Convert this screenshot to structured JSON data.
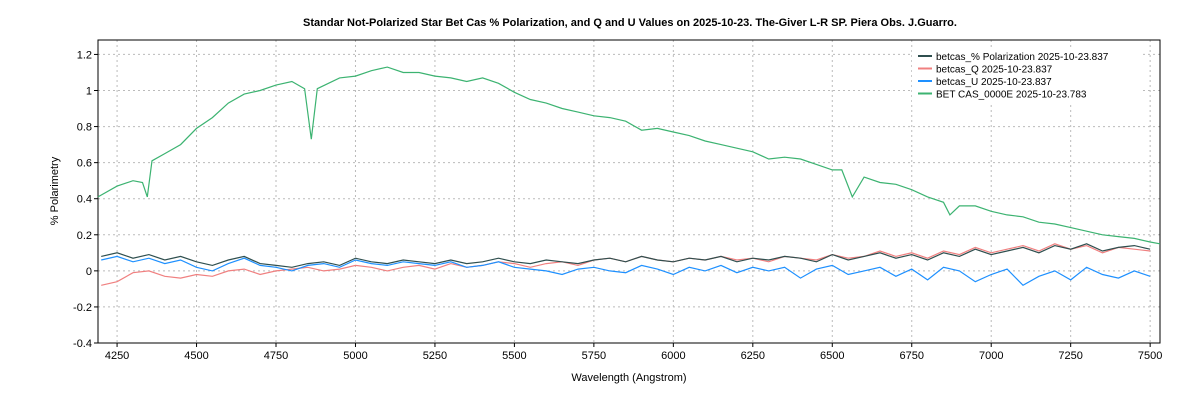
{
  "chart_data": {
    "type": "line",
    "title": "Standar Not-Polarized Star Bet Cas % Polarization, and Q and U Values on 2025-10-23. The-Giver L-R SP. Piera Obs.  J.Guarro.",
    "xlabel": "Wavelength (Angstrom)",
    "ylabel": "% Polarimetry",
    "xlim": [
      4190,
      7531
    ],
    "ylim": [
      -0.4,
      1.28
    ],
    "xticks": [
      4250,
      4500,
      4750,
      5000,
      5250,
      5500,
      5750,
      6000,
      6250,
      6500,
      6750,
      7000,
      7250,
      7500
    ],
    "yticks": [
      -0.4,
      -0.2,
      0,
      0.2,
      0.4,
      0.6,
      0.8,
      1,
      1.2
    ],
    "ytick_labels": [
      "-0.4",
      "-0.2",
      "0",
      "0.2",
      "0.4",
      "0.6",
      "0.8",
      "1",
      "1.2"
    ],
    "grid": true,
    "legend_placement": "top-right",
    "x": [
      4200,
      4250,
      4300,
      4350,
      4400,
      4450,
      4500,
      4550,
      4600,
      4650,
      4700,
      4750,
      4800,
      4850,
      4900,
      4950,
      5000,
      5050,
      5100,
      5150,
      5200,
      5250,
      5300,
      5350,
      5400,
      5450,
      5500,
      5550,
      5600,
      5650,
      5700,
      5750,
      5800,
      5850,
      5900,
      5950,
      6000,
      6050,
      6100,
      6150,
      6200,
      6250,
      6300,
      6350,
      6400,
      6450,
      6500,
      6550,
      6600,
      6650,
      6700,
      6750,
      6800,
      6850,
      6900,
      6950,
      7000,
      7050,
      7100,
      7150,
      7200,
      7250,
      7300,
      7350,
      7400,
      7450,
      7500
    ],
    "series": [
      {
        "name": "betcas_% Polarization  2025-10-23.837",
        "color": "#2f4f4f",
        "values": [
          0.08,
          0.1,
          0.07,
          0.09,
          0.06,
          0.08,
          0.05,
          0.03,
          0.06,
          0.08,
          0.04,
          0.03,
          0.02,
          0.04,
          0.05,
          0.03,
          0.07,
          0.05,
          0.04,
          0.06,
          0.05,
          0.04,
          0.06,
          0.04,
          0.05,
          0.07,
          0.05,
          0.04,
          0.06,
          0.05,
          0.04,
          0.06,
          0.07,
          0.05,
          0.08,
          0.06,
          0.05,
          0.07,
          0.06,
          0.08,
          0.05,
          0.07,
          0.06,
          0.08,
          0.07,
          0.05,
          0.09,
          0.06,
          0.08,
          0.1,
          0.07,
          0.09,
          0.06,
          0.1,
          0.08,
          0.12,
          0.09,
          0.11,
          0.13,
          0.1,
          0.14,
          0.12,
          0.15,
          0.11,
          0.13,
          0.14,
          0.12
        ]
      },
      {
        "name": "betcas_Q  2025-10-23.837",
        "color": "#f08080",
        "values": [
          -0.08,
          -0.06,
          -0.01,
          0.0,
          -0.03,
          -0.04,
          -0.02,
          -0.03,
          0.0,
          0.01,
          -0.02,
          0.0,
          0.01,
          0.02,
          0.0,
          0.01,
          0.03,
          0.02,
          0.0,
          0.02,
          0.03,
          0.01,
          0.04,
          0.02,
          0.03,
          0.05,
          0.04,
          0.02,
          0.04,
          0.05,
          0.03,
          0.06,
          0.07,
          0.05,
          0.08,
          0.06,
          0.05,
          0.07,
          0.06,
          0.08,
          0.06,
          0.07,
          0.05,
          0.08,
          0.07,
          0.06,
          0.09,
          0.07,
          0.08,
          0.11,
          0.08,
          0.1,
          0.07,
          0.11,
          0.09,
          0.13,
          0.1,
          0.12,
          0.14,
          0.11,
          0.15,
          0.12,
          0.14,
          0.1,
          0.13,
          0.12,
          0.11
        ]
      },
      {
        "name": "betcas_U  2025-10-23.837",
        "color": "#1e90ff",
        "values": [
          0.06,
          0.08,
          0.05,
          0.07,
          0.04,
          0.06,
          0.02,
          0.0,
          0.04,
          0.07,
          0.03,
          0.02,
          0.0,
          0.03,
          0.04,
          0.02,
          0.06,
          0.04,
          0.03,
          0.05,
          0.04,
          0.03,
          0.05,
          0.02,
          0.03,
          0.05,
          0.02,
          0.01,
          0.0,
          -0.02,
          0.01,
          0.02,
          0.0,
          -0.01,
          0.03,
          0.01,
          -0.02,
          0.02,
          0.0,
          0.03,
          -0.01,
          0.02,
          0.0,
          0.02,
          -0.04,
          0.01,
          0.03,
          -0.02,
          0.0,
          0.02,
          -0.03,
          0.01,
          -0.05,
          0.02,
          0.0,
          -0.06,
          -0.02,
          0.01,
          -0.08,
          -0.03,
          0.0,
          -0.05,
          0.02,
          -0.02,
          -0.04,
          0.0,
          -0.03
        ]
      },
      {
        "name": "BET CAS_0000E  2025-10-23.783",
        "color": "#3cb371",
        "x": [
          4190,
          4250,
          4300,
          4330,
          4345,
          4360,
          4400,
          4450,
          4500,
          4550,
          4600,
          4650,
          4700,
          4750,
          4800,
          4840,
          4861,
          4880,
          4950,
          5000,
          5050,
          5100,
          5150,
          5200,
          5250,
          5300,
          5350,
          5400,
          5450,
          5500,
          5550,
          5600,
          5650,
          5700,
          5750,
          5800,
          5850,
          5900,
          5950,
          6000,
          6050,
          6100,
          6150,
          6200,
          6250,
          6300,
          6350,
          6400,
          6450,
          6500,
          6530,
          6563,
          6600,
          6650,
          6700,
          6750,
          6800,
          6850,
          6870,
          6900,
          6950,
          7000,
          7050,
          7100,
          7150,
          7200,
          7250,
          7300,
          7350,
          7400,
          7450,
          7500,
          7531
        ],
        "values": [
          0.41,
          0.47,
          0.5,
          0.49,
          0.41,
          0.61,
          0.65,
          0.7,
          0.79,
          0.85,
          0.93,
          0.98,
          1.0,
          1.03,
          1.05,
          1.01,
          0.73,
          1.01,
          1.07,
          1.08,
          1.11,
          1.13,
          1.1,
          1.1,
          1.08,
          1.07,
          1.05,
          1.07,
          1.04,
          0.99,
          0.95,
          0.93,
          0.9,
          0.88,
          0.86,
          0.85,
          0.83,
          0.78,
          0.79,
          0.77,
          0.75,
          0.72,
          0.7,
          0.68,
          0.66,
          0.62,
          0.63,
          0.62,
          0.59,
          0.56,
          0.56,
          0.41,
          0.52,
          0.49,
          0.48,
          0.45,
          0.41,
          0.38,
          0.31,
          0.36,
          0.36,
          0.33,
          0.31,
          0.3,
          0.27,
          0.26,
          0.24,
          0.22,
          0.2,
          0.19,
          0.18,
          0.16,
          0.15
        ]
      }
    ]
  }
}
